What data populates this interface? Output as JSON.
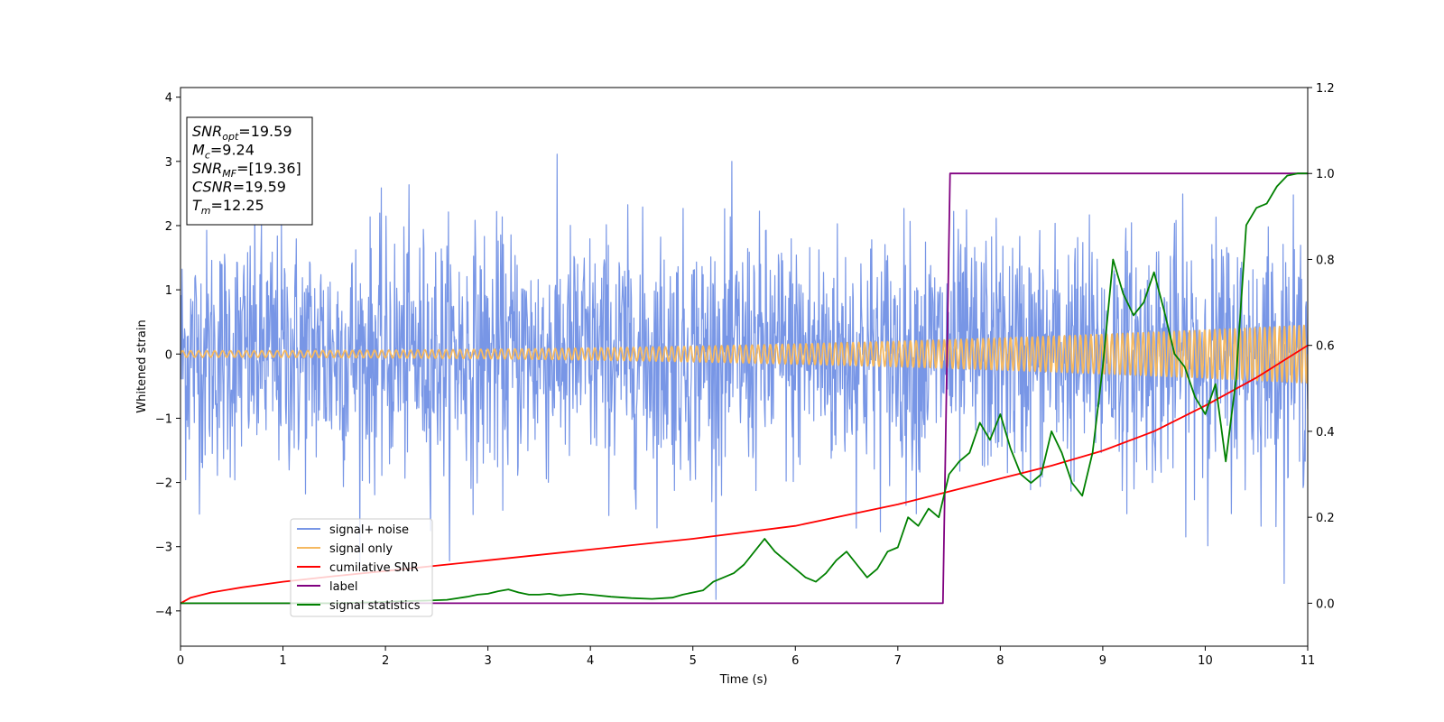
{
  "chart_data": {
    "type": "line",
    "xlabel": "Time (s)",
    "ylabel_left": "Whitened strain",
    "ylabel_right": "",
    "xlim": [
      0,
      11
    ],
    "ylim_left": [
      -4.55,
      4.15
    ],
    "ylim_right": [
      -0.1,
      1.2
    ],
    "x_ticks": [
      0,
      1,
      2,
      3,
      4,
      5,
      6,
      7,
      8,
      9,
      10,
      11
    ],
    "y_ticks_left": [
      -4,
      -3,
      -2,
      -1,
      0,
      1,
      2,
      3,
      4
    ],
    "y_ticks_right": [
      0.0,
      0.2,
      0.4,
      0.6,
      0.8,
      1.0,
      1.2
    ],
    "grid": false,
    "legend_position": "lower-left",
    "annotation": {
      "lines": [
        {
          "base": "SNR",
          "sub": "opt",
          "rest": "=19.59"
        },
        {
          "base": "M",
          "sub": "c",
          "rest": "=9.24"
        },
        {
          "base": "SNR",
          "sub": "MF",
          "rest": "=[19.36]"
        },
        {
          "base": "CSNR",
          "sub": "",
          "rest": "=19.59"
        },
        {
          "base": "T",
          "sub": "m",
          "rest": "=12.25"
        }
      ]
    },
    "series": [
      {
        "name": "signal+ noise",
        "axis": "left",
        "color": "#7896e6",
        "noise_envelope": {
          "sigma": 0.95,
          "max": 3.75,
          "min": -4.15
        },
        "samples": 2200
      },
      {
        "name": "signal only",
        "axis": "left",
        "color": "#f5b961",
        "chirp": {
          "amp_start": 0.05,
          "amp_end": 0.45,
          "cycles": 185
        }
      },
      {
        "name": "cumilative SNR",
        "axis": "right",
        "color": "#ff0000",
        "x": [
          0,
          0.1,
          0.3,
          0.6,
          1,
          1.5,
          2,
          3,
          4,
          5,
          6,
          7,
          7.5,
          8,
          8.5,
          9,
          9.5,
          10,
          10.5,
          10.8,
          11
        ],
        "y": [
          0.0,
          0.013,
          0.025,
          0.037,
          0.05,
          0.063,
          0.075,
          0.1,
          0.125,
          0.15,
          0.18,
          0.23,
          0.26,
          0.29,
          0.32,
          0.355,
          0.4,
          0.46,
          0.525,
          0.57,
          0.6
        ]
      },
      {
        "name": "label",
        "axis": "right",
        "color": "#800080",
        "x": [
          0,
          7.44,
          7.51,
          11
        ],
        "y": [
          0,
          0,
          1,
          1
        ]
      },
      {
        "name": "signal statistics",
        "axis": "right",
        "color": "#008000",
        "x": [
          0,
          0.5,
          1,
          1.5,
          2,
          2.2,
          2.4,
          2.6,
          2.8,
          2.9,
          3.0,
          3.1,
          3.2,
          3.3,
          3.4,
          3.5,
          3.6,
          3.7,
          3.8,
          3.9,
          4.0,
          4.2,
          4.4,
          4.6,
          4.8,
          4.9,
          5.0,
          5.1,
          5.2,
          5.3,
          5.4,
          5.5,
          5.6,
          5.7,
          5.8,
          5.9,
          6.0,
          6.1,
          6.2,
          6.3,
          6.4,
          6.5,
          6.6,
          6.7,
          6.8,
          6.9,
          7.0,
          7.1,
          7.2,
          7.3,
          7.4,
          7.5,
          7.6,
          7.7,
          7.8,
          7.9,
          8.0,
          8.1,
          8.2,
          8.3,
          8.4,
          8.5,
          8.6,
          8.7,
          8.8,
          8.9,
          9.0,
          9.1,
          9.2,
          9.3,
          9.4,
          9.5,
          9.6,
          9.7,
          9.8,
          9.9,
          10.0,
          10.1,
          10.2,
          10.3,
          10.4,
          10.5,
          10.6,
          10.7,
          10.8,
          10.9,
          11.0
        ],
        "y": [
          0.0,
          0.0,
          0.0,
          0.0,
          0.003,
          0.005,
          0.006,
          0.008,
          0.015,
          0.02,
          0.022,
          0.028,
          0.032,
          0.025,
          0.02,
          0.02,
          0.022,
          0.018,
          0.02,
          0.022,
          0.02,
          0.015,
          0.012,
          0.01,
          0.013,
          0.02,
          0.025,
          0.03,
          0.05,
          0.06,
          0.07,
          0.09,
          0.12,
          0.15,
          0.12,
          0.1,
          0.08,
          0.06,
          0.05,
          0.07,
          0.1,
          0.12,
          0.09,
          0.06,
          0.08,
          0.12,
          0.13,
          0.2,
          0.18,
          0.22,
          0.2,
          0.3,
          0.33,
          0.35,
          0.42,
          0.38,
          0.44,
          0.36,
          0.3,
          0.28,
          0.3,
          0.4,
          0.35,
          0.28,
          0.25,
          0.35,
          0.55,
          0.8,
          0.72,
          0.67,
          0.7,
          0.77,
          0.68,
          0.58,
          0.55,
          0.48,
          0.44,
          0.51,
          0.33,
          0.52,
          0.88,
          0.92,
          0.93,
          0.97,
          0.995,
          1.0,
          1.0
        ]
      }
    ]
  }
}
